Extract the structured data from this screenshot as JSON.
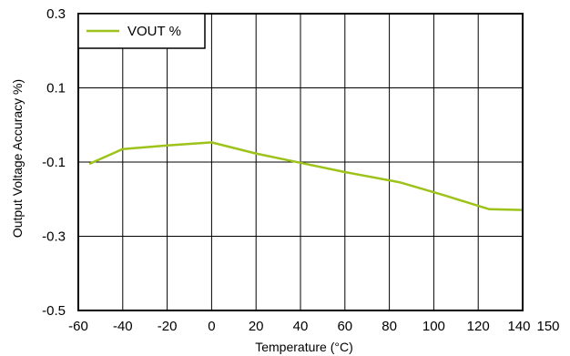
{
  "chart_data": {
    "type": "line",
    "xlabel": "Temperature (°C)",
    "ylabel": "Output Voltage Accuracy %)",
    "xlim": [
      -60,
      150
    ],
    "ylim": [
      -0.5,
      0.3
    ],
    "x_ticks": [
      -60,
      -40,
      -20,
      0,
      20,
      40,
      60,
      80,
      100,
      120,
      140,
      150
    ],
    "x_tick_labels": [
      "-60",
      "-40",
      "-20",
      "0",
      "20",
      "40",
      "60",
      "80",
      "100",
      "120",
      "140",
      "150"
    ],
    "y_ticks": [
      0.3,
      0.1,
      -0.1,
      -0.3,
      -0.5
    ],
    "y_tick_labels": [
      "0.3",
      "0.1",
      "-0.1",
      "-0.3",
      "-0.5"
    ],
    "grid": true,
    "legend_position": "top-left",
    "series": [
      {
        "name": "VOUT %",
        "color": "#9dc31a",
        "x": [
          -55,
          -40,
          -20,
          0,
          20,
          40,
          60,
          85,
          105,
          125,
          140
        ],
        "y": [
          -0.105,
          -0.065,
          -0.055,
          -0.047,
          -0.077,
          -0.102,
          -0.127,
          -0.155,
          -0.19,
          -0.227,
          -0.229
        ]
      }
    ]
  }
}
